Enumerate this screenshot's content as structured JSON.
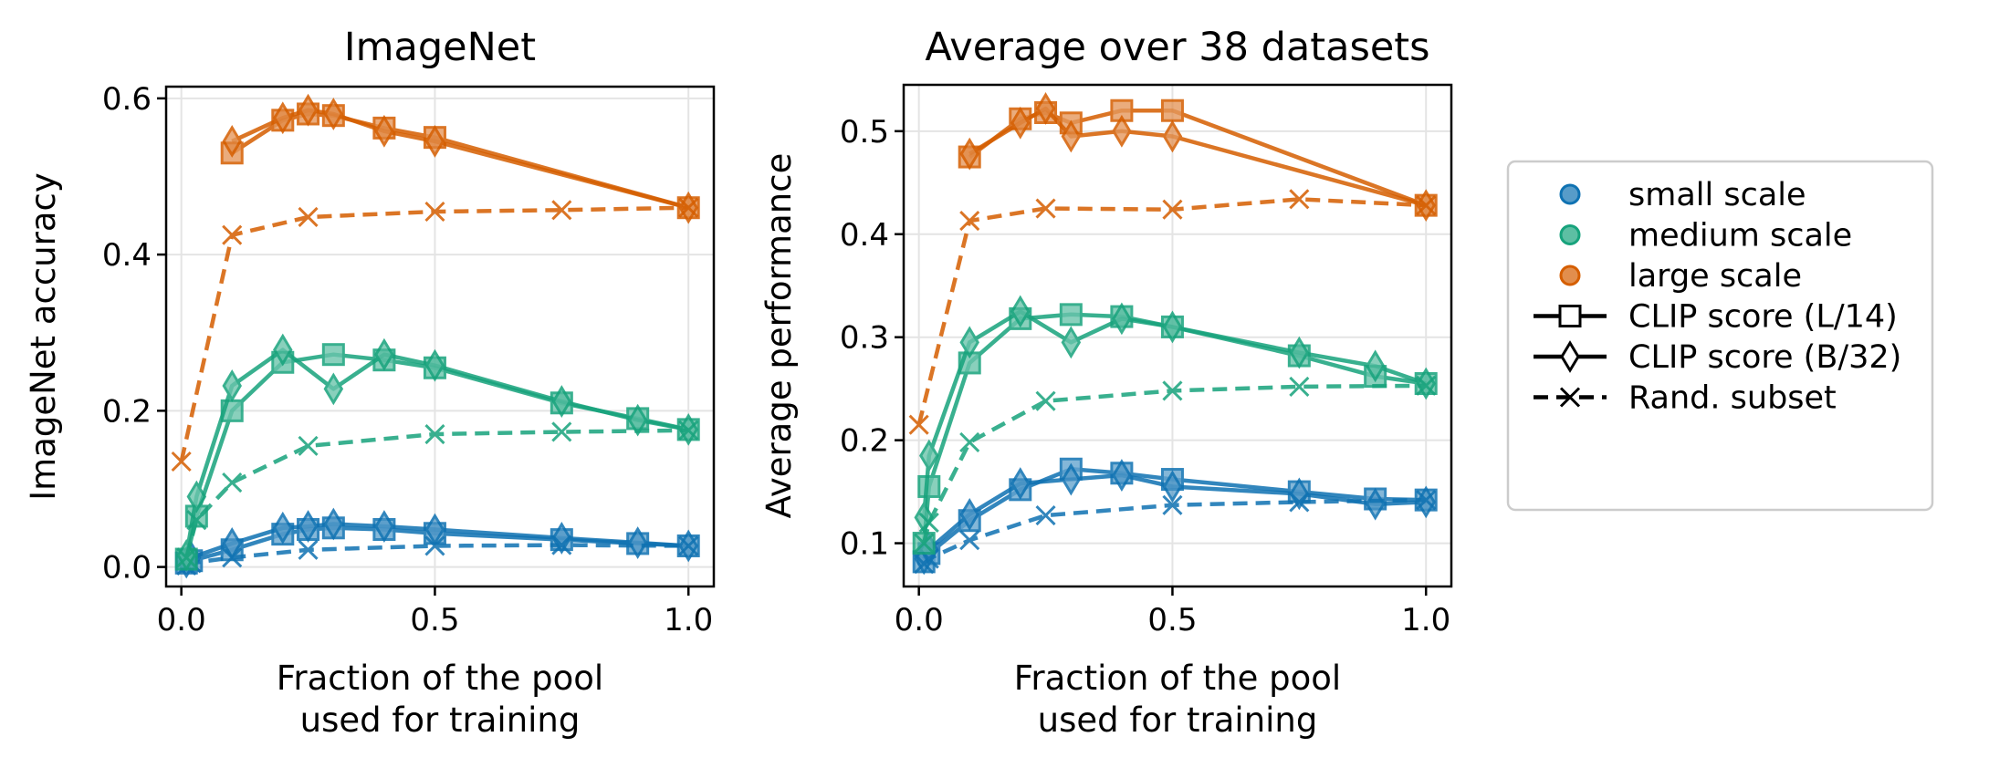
{
  "chart_data": [
    {
      "type": "line",
      "title": "ImageNet",
      "xlabel": [
        "Fraction of the pool",
        "used for training"
      ],
      "ylabel": "ImageNet accuracy",
      "xlim": [
        -0.03,
        1.05
      ],
      "ylim": [
        -0.025,
        0.615
      ],
      "xticks": [
        0.0,
        0.5,
        1.0
      ],
      "xtick_labels": [
        "0.0",
        "0.5",
        "1.0"
      ],
      "yticks": [
        0.0,
        0.2,
        0.4,
        0.6
      ],
      "ytick_labels": [
        "0.0",
        "0.2",
        "0.4",
        "0.6"
      ],
      "grid": true,
      "series": [
        {
          "scale": "small",
          "method": "l14",
          "x": [
            0.01,
            0.02,
            0.1,
            0.2,
            0.25,
            0.3,
            0.4,
            0.5,
            0.75,
            0.9,
            1.0
          ],
          "y": [
            0.005,
            0.008,
            0.022,
            0.042,
            0.048,
            0.05,
            0.048,
            0.043,
            0.035,
            0.03,
            0.027
          ]
        },
        {
          "scale": "small",
          "method": "b32",
          "x": [
            0.01,
            0.02,
            0.1,
            0.2,
            0.25,
            0.3,
            0.4,
            0.5,
            0.75,
            0.9,
            1.0
          ],
          "y": [
            0.006,
            0.012,
            0.03,
            0.05,
            0.052,
            0.055,
            0.052,
            0.048,
            0.037,
            0.031,
            0.027
          ]
        },
        {
          "scale": "small",
          "method": "rand",
          "x": [
            0.01,
            0.02,
            0.1,
            0.25,
            0.5,
            0.75,
            1.0
          ],
          "y": [
            0.002,
            0.005,
            0.012,
            0.022,
            0.027,
            0.028,
            0.027
          ]
        },
        {
          "scale": "medium",
          "method": "l14",
          "x": [
            0.01,
            0.03,
            0.1,
            0.2,
            0.3,
            0.4,
            0.5,
            0.75,
            0.9,
            1.0
          ],
          "y": [
            0.01,
            0.065,
            0.2,
            0.262,
            0.272,
            0.265,
            0.255,
            0.21,
            0.19,
            0.176
          ]
        },
        {
          "scale": "medium",
          "method": "b32",
          "x": [
            0.01,
            0.03,
            0.1,
            0.2,
            0.3,
            0.4,
            0.5,
            0.75,
            0.9,
            1.0
          ],
          "y": [
            0.015,
            0.09,
            0.232,
            0.278,
            0.228,
            0.272,
            0.258,
            0.212,
            0.188,
            0.176
          ]
        },
        {
          "scale": "medium",
          "method": "rand",
          "x": [
            0.01,
            0.03,
            0.1,
            0.25,
            0.5,
            0.75,
            1.0
          ],
          "y": [
            0.012,
            0.06,
            0.108,
            0.155,
            0.17,
            0.173,
            0.175
          ]
        },
        {
          "scale": "large",
          "method": "l14",
          "x": [
            0.1,
            0.2,
            0.25,
            0.3,
            0.4,
            0.5,
            1.0
          ],
          "y": [
            0.53,
            0.572,
            0.58,
            0.578,
            0.562,
            0.55,
            0.46
          ]
        },
        {
          "scale": "large",
          "method": "b32",
          "x": [
            0.1,
            0.2,
            0.25,
            0.3,
            0.4,
            0.5,
            1.0
          ],
          "y": [
            0.545,
            0.575,
            0.585,
            0.58,
            0.558,
            0.545,
            0.46
          ]
        },
        {
          "scale": "large",
          "method": "rand",
          "x": [
            0.0,
            0.1,
            0.25,
            0.5,
            0.75,
            1.0
          ],
          "y": [
            0.135,
            0.425,
            0.448,
            0.455,
            0.457,
            0.46
          ]
        }
      ]
    },
    {
      "type": "line",
      "title": "Average over 38 datasets",
      "xlabel": [
        "Fraction of the pool",
        "used for training"
      ],
      "ylabel": "Average performance",
      "xlim": [
        -0.03,
        1.05
      ],
      "ylim": [
        0.058,
        0.545
      ],
      "xticks": [
        0.0,
        0.5,
        1.0
      ],
      "xtick_labels": [
        "0.0",
        "0.5",
        "1.0"
      ],
      "yticks": [
        0.1,
        0.2,
        0.3,
        0.4,
        0.5
      ],
      "ytick_labels": [
        "0.1",
        "0.2",
        "0.3",
        "0.4",
        "0.5"
      ],
      "grid": true,
      "series": [
        {
          "scale": "small",
          "method": "l14",
          "x": [
            0.01,
            0.02,
            0.1,
            0.2,
            0.3,
            0.4,
            0.5,
            0.75,
            0.9,
            1.0
          ],
          "y": [
            0.082,
            0.09,
            0.122,
            0.152,
            0.172,
            0.168,
            0.162,
            0.15,
            0.143,
            0.142
          ]
        },
        {
          "scale": "small",
          "method": "b32",
          "x": [
            0.01,
            0.02,
            0.1,
            0.2,
            0.3,
            0.4,
            0.5,
            0.75,
            0.9,
            1.0
          ],
          "y": [
            0.085,
            0.094,
            0.128,
            0.158,
            0.162,
            0.166,
            0.155,
            0.148,
            0.138,
            0.14
          ]
        },
        {
          "scale": "small",
          "method": "rand",
          "x": [
            0.01,
            0.02,
            0.1,
            0.25,
            0.5,
            0.75,
            1.0
          ],
          "y": [
            0.08,
            0.085,
            0.103,
            0.127,
            0.137,
            0.14,
            0.142
          ]
        },
        {
          "scale": "medium",
          "method": "l14",
          "x": [
            0.01,
            0.02,
            0.1,
            0.2,
            0.3,
            0.4,
            0.5,
            0.75,
            0.9,
            1.0
          ],
          "y": [
            0.1,
            0.155,
            0.275,
            0.318,
            0.322,
            0.32,
            0.31,
            0.282,
            0.262,
            0.255
          ]
        },
        {
          "scale": "medium",
          "method": "b32",
          "x": [
            0.01,
            0.02,
            0.1,
            0.2,
            0.3,
            0.4,
            0.5,
            0.75,
            0.9,
            1.0
          ],
          "y": [
            0.125,
            0.185,
            0.295,
            0.325,
            0.295,
            0.318,
            0.31,
            0.285,
            0.272,
            0.255
          ]
        },
        {
          "scale": "medium",
          "method": "rand",
          "x": [
            0.01,
            0.02,
            0.1,
            0.25,
            0.5,
            0.75,
            1.0
          ],
          "y": [
            0.1,
            0.12,
            0.198,
            0.238,
            0.248,
            0.252,
            0.253
          ]
        },
        {
          "scale": "large",
          "method": "l14",
          "x": [
            0.1,
            0.2,
            0.25,
            0.3,
            0.4,
            0.5,
            1.0
          ],
          "y": [
            0.475,
            0.512,
            0.518,
            0.508,
            0.52,
            0.52,
            0.428
          ]
        },
        {
          "scale": "large",
          "method": "b32",
          "x": [
            0.1,
            0.2,
            0.25,
            0.3,
            0.4,
            0.5,
            1.0
          ],
          "y": [
            0.478,
            0.508,
            0.522,
            0.495,
            0.5,
            0.495,
            0.428
          ]
        },
        {
          "scale": "large",
          "method": "rand",
          "x": [
            0.0,
            0.1,
            0.25,
            0.5,
            0.75,
            1.0
          ],
          "y": [
            0.215,
            0.413,
            0.425,
            0.424,
            0.434,
            0.428
          ]
        }
      ]
    }
  ],
  "colors": {
    "small": "#0f72b2",
    "medium": "#17a37c",
    "large": "#d55e00"
  },
  "legend": {
    "placement": "right",
    "entries": [
      {
        "label": "small scale",
        "kind": "color",
        "scale": "small"
      },
      {
        "label": "medium scale",
        "kind": "color",
        "scale": "medium"
      },
      {
        "label": "large scale",
        "kind": "color",
        "scale": "large"
      },
      {
        "label": "CLIP score (L/14)",
        "kind": "style",
        "method": "l14"
      },
      {
        "label": "CLIP score (B/32)",
        "kind": "style",
        "method": "b32"
      },
      {
        "label": "Rand. subset",
        "kind": "style",
        "method": "rand"
      }
    ]
  }
}
